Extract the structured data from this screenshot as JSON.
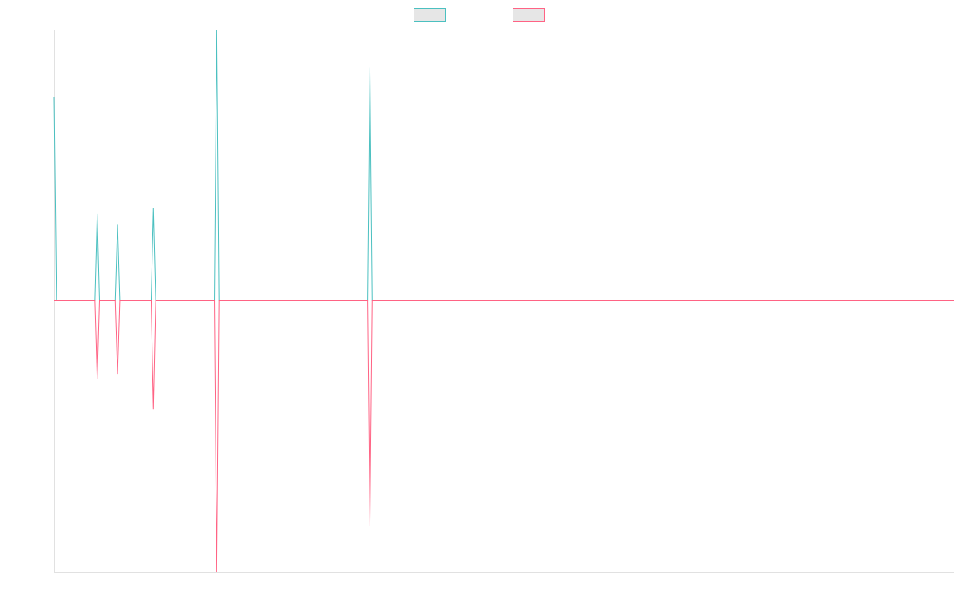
{
  "chart_data": {
    "type": "line",
    "title": "",
    "xlabel": "",
    "ylabel": "",
    "grid": false,
    "legend_placement": "top-center",
    "x_count": 400,
    "ylim": [
      -100,
      100
    ],
    "series": [
      {
        "name": "",
        "color": "#4bc0c0",
        "fill": "#e6e6e6",
        "points": [
          [
            0,
            75
          ],
          [
            1,
            0
          ],
          [
            18,
            0
          ],
          [
            19,
            32
          ],
          [
            20,
            0
          ],
          [
            27,
            0
          ],
          [
            28,
            28
          ],
          [
            29,
            0
          ],
          [
            43,
            0
          ],
          [
            44,
            34
          ],
          [
            45,
            0
          ],
          [
            71,
            0
          ],
          [
            72,
            100
          ],
          [
            73,
            0
          ],
          [
            139,
            0
          ],
          [
            140,
            86
          ],
          [
            141,
            0
          ],
          [
            399,
            0
          ]
        ]
      },
      {
        "name": "",
        "color": "#ff6384",
        "fill": "#e6e6e6",
        "points": [
          [
            0,
            0
          ],
          [
            1,
            0
          ],
          [
            18,
            0
          ],
          [
            19,
            -29
          ],
          [
            20,
            0
          ],
          [
            27,
            0
          ],
          [
            28,
            -27
          ],
          [
            29,
            0
          ],
          [
            43,
            0
          ],
          [
            44,
            -40
          ],
          [
            45,
            0
          ],
          [
            71,
            0
          ],
          [
            72,
            -100
          ],
          [
            73,
            0
          ],
          [
            139,
            0
          ],
          [
            140,
            -83
          ],
          [
            141,
            0
          ],
          [
            399,
            0
          ]
        ]
      }
    ]
  }
}
